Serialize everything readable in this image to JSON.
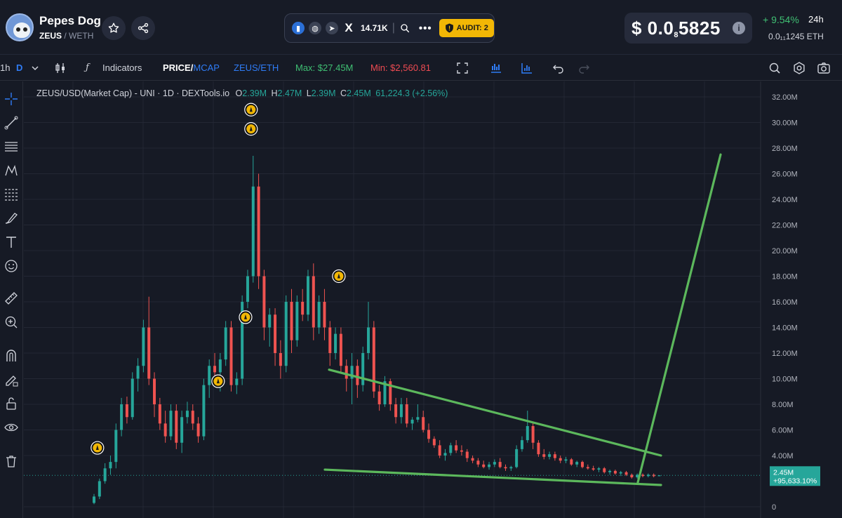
{
  "header": {
    "token_name": "Pepes Dog",
    "token_symbol": "ZEUS",
    "quote_symbol": "/ WETH",
    "x_followers": "14.71K",
    "audit_label": "AUDIT: 2",
    "price_prefix": "$ 0.0",
    "price_zeros": "8",
    "price_digits": "5825",
    "change_24h": "+ 9.54%",
    "change_period": "24h",
    "price_eth": "0.0₁₁1245  ETH"
  },
  "toolbar": {
    "interval": "1h",
    "interval_active": "D",
    "indicators_label": "Indicators",
    "price_label": "PRICE",
    "mcap_label": "MCAP",
    "pair_label": "ZEUS/ETH",
    "max_label": "Max: $27.45M",
    "min_label": "Min: $2,560.81"
  },
  "legend": {
    "title": "ZEUS/USD(Market Cap) - UNI · 1D · DEXTools.io",
    "open_label": "O",
    "open": "2.39M",
    "high_label": "H",
    "high": "2.47M",
    "low_label": "L",
    "low": "2.39M",
    "close_label": "C",
    "close": "2.45M",
    "volume_change": "61,224.3 (+2.56%)"
  },
  "colors": {
    "up": "#26a69a",
    "down": "#ef5350",
    "trendline": "#5cb85c",
    "background": "#161a25",
    "badge": "#f2b705"
  },
  "chart_data": {
    "type": "candlestick",
    "title": "ZEUS/USD(Market Cap) - UNI · 1D · DEXTools.io",
    "y_unit": "USD market cap (M)",
    "ylim": [
      0,
      33
    ],
    "y_ticks": [
      0,
      4,
      6,
      8,
      10,
      12,
      14,
      16,
      18,
      20,
      22,
      24,
      26,
      28,
      30,
      32
    ],
    "y_tick_labels": [
      "0",
      "4.00M",
      "6.00M",
      "8.00M",
      "10.00M",
      "12.00M",
      "14.00M",
      "16.00M",
      "18.00M",
      "20.00M",
      "22.00M",
      "24.00M",
      "26.00M",
      "28.00M",
      "30.00M",
      "32.00M"
    ],
    "grid": true,
    "last_price_label": "2.45M",
    "last_change_label": "+95,633.10%",
    "last_value": 2.45,
    "ohlc": [
      [
        0.3,
        1.0,
        0.2,
        0.8
      ],
      [
        0.8,
        2.2,
        0.6,
        2.0
      ],
      [
        2.0,
        3.4,
        1.8,
        3.0
      ],
      [
        3.0,
        4.0,
        2.5,
        3.5
      ],
      [
        3.5,
        6.5,
        3.0,
        6.0
      ],
      [
        6.0,
        8.5,
        5.5,
        8.0
      ],
      [
        8.0,
        8.6,
        6.5,
        7.0
      ],
      [
        7.0,
        10.5,
        6.8,
        10.0
      ],
      [
        10.0,
        11.6,
        9.0,
        11.0
      ],
      [
        11.0,
        14.6,
        10.5,
        14.0
      ],
      [
        14.0,
        16.4,
        9.5,
        10.0
      ],
      [
        10.0,
        10.5,
        7.0,
        8.0
      ],
      [
        8.0,
        8.5,
        6.0,
        6.5
      ],
      [
        6.5,
        7.5,
        5.0,
        5.5
      ],
      [
        5.5,
        8.0,
        5.2,
        7.5
      ],
      [
        7.5,
        8.0,
        4.5,
        5.0
      ],
      [
        5.0,
        7.5,
        4.2,
        7.0
      ],
      [
        7.0,
        8.2,
        6.5,
        7.5
      ],
      [
        7.5,
        8.0,
        6.0,
        6.5
      ],
      [
        6.5,
        7.0,
        5.0,
        5.5
      ],
      [
        5.5,
        10.0,
        5.2,
        9.5
      ],
      [
        9.5,
        11.5,
        8.5,
        11.0
      ],
      [
        11.0,
        12.0,
        10.0,
        10.5
      ],
      [
        10.5,
        12.0,
        9.0,
        11.5
      ],
      [
        11.5,
        14.5,
        11.0,
        14.0
      ],
      [
        14.0,
        14.5,
        9.0,
        9.5
      ],
      [
        9.5,
        10.5,
        8.8,
        10.0
      ],
      [
        10.0,
        16.5,
        9.5,
        16.0
      ],
      [
        16.0,
        18.5,
        15.5,
        18.0
      ],
      [
        18.0,
        27.4,
        17.5,
        25.0
      ],
      [
        25.0,
        26.0,
        17.0,
        18.0
      ],
      [
        18.0,
        18.5,
        13.0,
        14.0
      ],
      [
        14.0,
        15.5,
        12.5,
        15.0
      ],
      [
        15.0,
        15.5,
        11.0,
        12.0
      ],
      [
        12.0,
        13.0,
        10.0,
        11.0
      ],
      [
        11.0,
        16.5,
        10.5,
        16.0
      ],
      [
        16.0,
        17.0,
        12.0,
        13.0
      ],
      [
        13.0,
        16.5,
        12.5,
        16.0
      ],
      [
        16.0,
        17.0,
        14.5,
        15.0
      ],
      [
        15.0,
        18.5,
        14.5,
        18.0
      ],
      [
        18.0,
        19.0,
        13.0,
        14.0
      ],
      [
        14.0,
        16.5,
        13.5,
        16.0
      ],
      [
        16.0,
        17.0,
        13.0,
        14.0
      ],
      [
        14.0,
        14.5,
        11.0,
        12.0
      ],
      [
        12.0,
        14.0,
        11.5,
        13.5
      ],
      [
        13.5,
        14.0,
        10.5,
        11.0
      ],
      [
        11.0,
        11.5,
        9.0,
        10.0
      ],
      [
        10.0,
        12.0,
        8.0,
        11.0
      ],
      [
        11.0,
        11.5,
        8.5,
        9.5
      ],
      [
        9.5,
        12.5,
        9.0,
        12.0
      ],
      [
        12.0,
        16.0,
        11.5,
        14.0
      ],
      [
        14.0,
        14.5,
        8.5,
        9.0
      ],
      [
        9.0,
        9.5,
        7.5,
        8.0
      ],
      [
        8.0,
        10.2,
        7.8,
        9.8
      ],
      [
        9.8,
        10.0,
        7.5,
        8.0
      ],
      [
        8.0,
        8.5,
        6.5,
        7.0
      ],
      [
        7.0,
        8.5,
        6.5,
        8.0
      ],
      [
        8.0,
        8.5,
        6.2,
        6.5
      ],
      [
        6.5,
        7.0,
        6.0,
        6.8
      ],
      [
        6.8,
        8.0,
        6.6,
        7.0
      ],
      [
        7.0,
        7.5,
        5.8,
        6.0
      ],
      [
        6.0,
        6.5,
        5.0,
        5.3
      ],
      [
        5.3,
        5.5,
        4.6,
        4.8
      ],
      [
        4.8,
        5.2,
        3.8,
        4.0
      ],
      [
        4.0,
        4.5,
        3.6,
        4.2
      ],
      [
        4.2,
        5.0,
        4.0,
        4.8
      ],
      [
        4.8,
        5.2,
        4.2,
        4.4
      ],
      [
        4.4,
        4.8,
        4.0,
        4.3
      ],
      [
        4.3,
        4.5,
        3.5,
        3.8
      ],
      [
        3.8,
        4.0,
        3.4,
        3.6
      ],
      [
        3.6,
        3.8,
        3.1,
        3.3
      ],
      [
        3.3,
        3.6,
        3.0,
        3.1
      ],
      [
        3.1,
        3.5,
        2.9,
        3.3
      ],
      [
        3.3,
        3.7,
        3.1,
        3.5
      ],
      [
        3.5,
        3.8,
        3.0,
        3.1
      ],
      [
        3.1,
        3.3,
        2.8,
        3.0
      ],
      [
        3.0,
        3.2,
        2.8,
        3.1
      ],
      [
        3.1,
        4.8,
        3.0,
        4.5
      ],
      [
        4.5,
        5.5,
        4.3,
        5.2
      ],
      [
        5.2,
        7.5,
        5.0,
        6.3
      ],
      [
        6.3,
        6.6,
        4.5,
        5.0
      ],
      [
        5.0,
        5.2,
        3.9,
        4.1
      ],
      [
        4.1,
        4.5,
        3.7,
        3.9
      ],
      [
        3.9,
        4.3,
        3.7,
        4.1
      ],
      [
        4.1,
        4.3,
        3.6,
        3.8
      ],
      [
        3.8,
        4.0,
        3.4,
        3.6
      ],
      [
        3.6,
        3.9,
        3.4,
        3.7
      ],
      [
        3.7,
        3.8,
        3.2,
        3.3
      ],
      [
        3.3,
        3.6,
        3.1,
        3.5
      ],
      [
        3.5,
        3.6,
        3.0,
        3.1
      ],
      [
        3.1,
        3.3,
        2.9,
        3.0
      ],
      [
        3.0,
        3.2,
        2.8,
        2.9
      ],
      [
        2.9,
        3.1,
        2.7,
        3.0
      ],
      [
        3.0,
        3.1,
        2.6,
        2.7
      ],
      [
        2.7,
        2.9,
        2.5,
        2.8
      ],
      [
        2.8,
        2.9,
        2.5,
        2.6
      ],
      [
        2.6,
        2.8,
        2.4,
        2.7
      ],
      [
        2.7,
        2.8,
        2.4,
        2.5
      ],
      [
        2.5,
        2.6,
        2.2,
        2.3
      ],
      [
        2.3,
        2.6,
        2.2,
        2.5
      ],
      [
        2.5,
        2.6,
        2.3,
        2.4
      ],
      [
        2.4,
        2.6,
        2.3,
        2.5
      ],
      [
        2.5,
        2.6,
        2.3,
        2.39
      ],
      [
        2.39,
        2.47,
        2.39,
        2.45
      ]
    ],
    "event_markers": [
      {
        "index": 1,
        "value": 4.6
      },
      {
        "index": 23,
        "value": 9.8
      },
      {
        "index": 28,
        "value": 14.8
      },
      {
        "index": 29,
        "value": 29.5
      },
      {
        "index": 29,
        "value": 31.0
      },
      {
        "index": 45,
        "value": 18.0
      }
    ],
    "trendlines": [
      {
        "from": [
          0.0,
          10.7
        ],
        "to": [
          1.0,
          4.0
        ]
      },
      {
        "from": [
          0.0,
          2.9
        ],
        "to": [
          1.0,
          1.7
        ]
      },
      {
        "from": [
          0.0,
          1.9
        ],
        "to": [
          1.0,
          27.5
        ]
      }
    ]
  }
}
